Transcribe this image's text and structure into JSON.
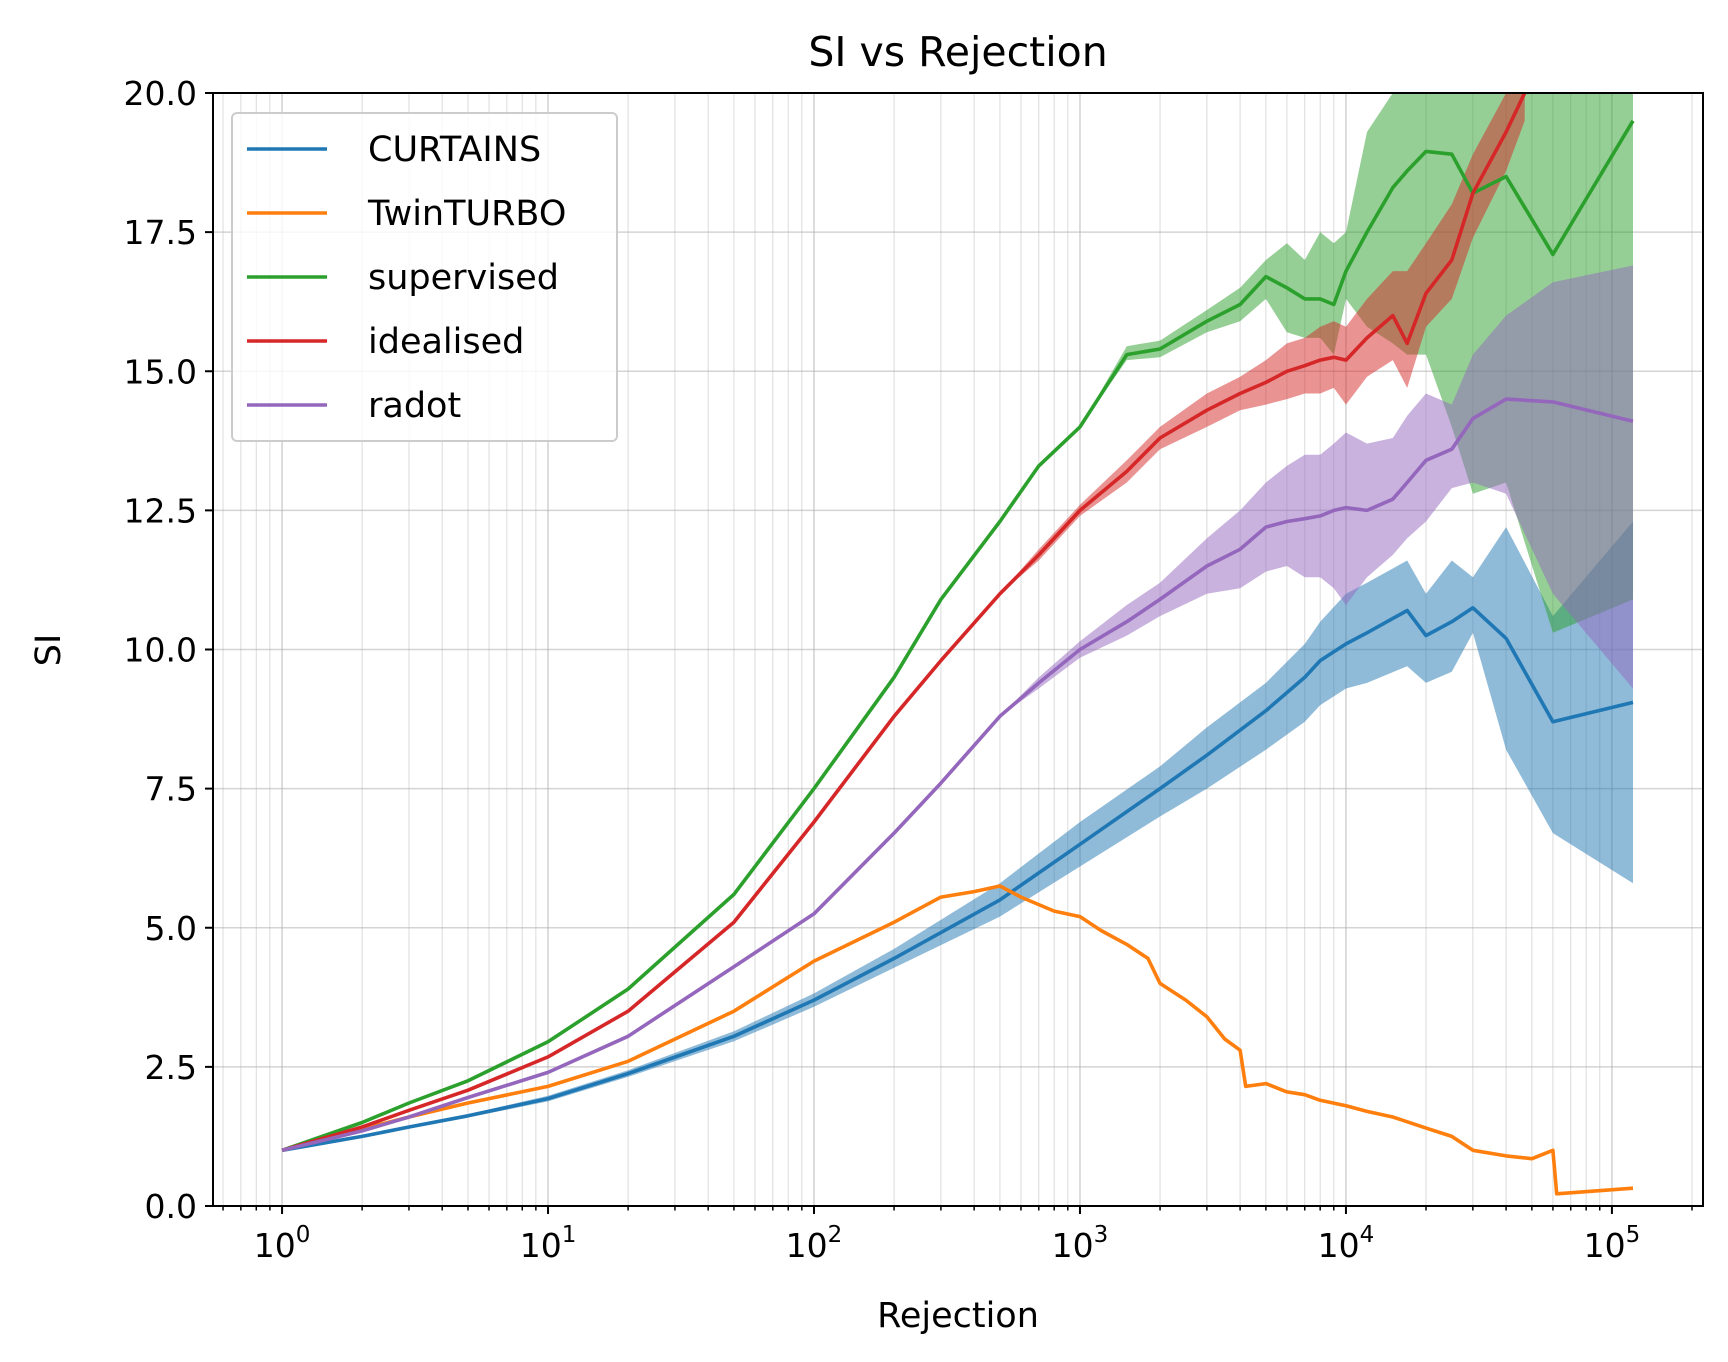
{
  "chart_data": {
    "type": "line",
    "title": "SI vs Rejection",
    "xlabel": "Rejection",
    "ylabel": "SI",
    "xscale": "log",
    "xlim": [
      0.55,
      220000
    ],
    "ylim": [
      0,
      20
    ],
    "x_ticks": [
      1,
      10,
      100,
      1000,
      10000,
      100000
    ],
    "x_tick_labels": [
      {
        "base": "10",
        "exp": "0"
      },
      {
        "base": "10",
        "exp": "1"
      },
      {
        "base": "10",
        "exp": "2"
      },
      {
        "base": "10",
        "exp": "3"
      },
      {
        "base": "10",
        "exp": "4"
      },
      {
        "base": "10",
        "exp": "5"
      }
    ],
    "y_ticks": [
      0.0,
      2.5,
      5.0,
      7.5,
      10.0,
      12.5,
      15.0,
      17.5,
      20.0
    ],
    "y_tick_labels": [
      "0.0",
      "2.5",
      "5.0",
      "7.5",
      "10.0",
      "12.5",
      "15.0",
      "17.5",
      "20.0"
    ],
    "grid": true,
    "legend_position": "top-left",
    "series": [
      {
        "name": "CURTAINS",
        "color": "#1f77b4",
        "band_color": "#1f77b4",
        "x": [
          1,
          2,
          3,
          5,
          10,
          20,
          50,
          100,
          200,
          500,
          1000,
          2000,
          3000,
          5000,
          7000,
          8000,
          10000,
          12000,
          17000,
          20000,
          25000,
          30000,
          40000,
          60000,
          120000
        ],
        "y": [
          1.0,
          1.25,
          1.42,
          1.62,
          1.93,
          2.38,
          3.05,
          3.7,
          4.45,
          5.5,
          6.5,
          7.5,
          8.1,
          8.9,
          9.5,
          9.8,
          10.1,
          10.3,
          10.7,
          10.25,
          10.5,
          10.75,
          10.2,
          8.7,
          9.05
        ],
        "low": [
          1.0,
          1.23,
          1.4,
          1.59,
          1.88,
          2.32,
          2.96,
          3.58,
          4.28,
          5.2,
          6.1,
          7.0,
          7.5,
          8.2,
          8.7,
          9.0,
          9.3,
          9.4,
          9.7,
          9.4,
          9.6,
          10.3,
          8.2,
          6.7,
          5.8
        ],
        "high": [
          1.0,
          1.27,
          1.44,
          1.65,
          1.98,
          2.44,
          3.14,
          3.82,
          4.62,
          5.8,
          6.9,
          7.9,
          8.6,
          9.4,
          10.1,
          10.5,
          11.0,
          11.2,
          11.6,
          11.0,
          11.6,
          11.3,
          12.2,
          10.6,
          12.3
        ]
      },
      {
        "name": "TwinTURBO",
        "color": "#ff7f0e",
        "x": [
          1,
          2,
          3,
          5,
          10,
          20,
          50,
          100,
          200,
          300,
          400,
          500,
          600,
          800,
          1000,
          1200,
          1500,
          1800,
          2000,
          2500,
          3000,
          3500,
          4000,
          4200,
          5000,
          6000,
          7000,
          8000,
          10000,
          12000,
          15000,
          20000,
          25000,
          30000,
          40000,
          50000,
          60000,
          62000,
          120000
        ],
        "y": [
          1.0,
          1.38,
          1.6,
          1.85,
          2.15,
          2.6,
          3.5,
          4.4,
          5.1,
          5.55,
          5.65,
          5.75,
          5.55,
          5.3,
          5.2,
          4.95,
          4.7,
          4.45,
          4.0,
          3.7,
          3.4,
          3.0,
          2.8,
          2.15,
          2.2,
          2.05,
          2.0,
          1.9,
          1.8,
          1.7,
          1.6,
          1.4,
          1.25,
          1.0,
          0.9,
          0.85,
          1.0,
          0.22,
          0.32
        ]
      },
      {
        "name": "supervised",
        "color": "#2ca02c",
        "band_color": "#2ca02c",
        "x": [
          1,
          2,
          3,
          5,
          10,
          20,
          50,
          100,
          200,
          300,
          500,
          700,
          1000,
          1500,
          2000,
          3000,
          4000,
          5000,
          6000,
          7000,
          8000,
          9000,
          10000,
          12000,
          15000,
          17000,
          20000,
          25000,
          30000,
          40000,
          60000,
          120000
        ],
        "y": [
          1.0,
          1.5,
          1.85,
          2.25,
          2.95,
          3.9,
          5.6,
          7.5,
          9.5,
          10.9,
          12.3,
          13.3,
          14.0,
          15.3,
          15.4,
          15.9,
          16.2,
          16.7,
          16.5,
          16.3,
          16.3,
          16.2,
          16.8,
          17.5,
          18.3,
          18.6,
          18.95,
          18.9,
          18.2,
          18.5,
          17.1,
          19.5
        ],
        "low": [
          1.0,
          1.5,
          1.85,
          2.25,
          2.95,
          3.9,
          5.6,
          7.5,
          9.5,
          10.9,
          12.3,
          13.3,
          14.0,
          15.2,
          15.25,
          15.7,
          15.9,
          16.3,
          15.7,
          15.6,
          15.6,
          15.3,
          16.3,
          15.8,
          15.5,
          15.3,
          15.3,
          14.0,
          12.8,
          13.0,
          10.3,
          10.9
        ],
        "high": [
          1.0,
          1.5,
          1.85,
          2.25,
          2.95,
          3.9,
          5.6,
          7.5,
          9.5,
          10.9,
          12.3,
          13.3,
          14.0,
          15.45,
          15.55,
          16.1,
          16.5,
          17.0,
          17.3,
          17.0,
          17.5,
          17.3,
          17.5,
          19.3,
          20.0,
          20.0,
          20.0,
          20.0,
          20.0,
          20.0,
          20.0,
          20.0
        ]
      },
      {
        "name": "idealised",
        "color": "#d62728",
        "band_color": "#d62728",
        "x": [
          1,
          2,
          3,
          5,
          10,
          20,
          50,
          100,
          200,
          300,
          500,
          700,
          1000,
          1500,
          2000,
          3000,
          4000,
          5000,
          6000,
          7000,
          8000,
          9000,
          10000,
          12000,
          15000,
          17000,
          20000,
          25000,
          30000,
          40000,
          47000
        ],
        "y": [
          1.0,
          1.42,
          1.72,
          2.08,
          2.68,
          3.5,
          5.1,
          6.9,
          8.8,
          9.8,
          11.0,
          11.7,
          12.5,
          13.2,
          13.8,
          14.3,
          14.6,
          14.8,
          15.0,
          15.1,
          15.2,
          15.25,
          15.2,
          15.6,
          16.0,
          15.5,
          16.4,
          17.0,
          18.2,
          19.3,
          20.0
        ],
        "low": [
          1.0,
          1.42,
          1.72,
          2.08,
          2.68,
          3.5,
          5.1,
          6.9,
          8.8,
          9.8,
          11.0,
          11.6,
          12.4,
          13.0,
          13.6,
          14.0,
          14.3,
          14.4,
          14.5,
          14.6,
          14.6,
          14.7,
          14.4,
          14.9,
          15.2,
          14.7,
          15.8,
          16.3,
          17.4,
          18.6,
          19.5
        ],
        "high": [
          1.0,
          1.42,
          1.72,
          2.08,
          2.68,
          3.5,
          5.1,
          6.9,
          8.8,
          9.8,
          11.0,
          11.8,
          12.6,
          13.4,
          14.0,
          14.6,
          14.9,
          15.2,
          15.5,
          15.6,
          15.8,
          15.9,
          15.8,
          16.3,
          16.8,
          16.8,
          17.3,
          18.0,
          18.9,
          20.0,
          20.0
        ]
      },
      {
        "name": "radot",
        "color": "#9467bd",
        "band_color": "#9467bd",
        "x": [
          1,
          2,
          3,
          5,
          10,
          20,
          50,
          100,
          200,
          300,
          500,
          700,
          1000,
          1500,
          2000,
          3000,
          4000,
          5000,
          6000,
          7000,
          8000,
          9000,
          10000,
          12000,
          15000,
          17000,
          20000,
          25000,
          30000,
          40000,
          60000,
          120000
        ],
        "y": [
          1.0,
          1.35,
          1.6,
          1.95,
          2.4,
          3.05,
          4.3,
          5.25,
          6.7,
          7.6,
          8.8,
          9.4,
          10.0,
          10.5,
          10.9,
          11.5,
          11.8,
          12.2,
          12.3,
          12.35,
          12.4,
          12.5,
          12.55,
          12.5,
          12.7,
          13.0,
          13.4,
          13.6,
          14.15,
          14.5,
          14.45,
          14.1
        ],
        "low": [
          1.0,
          1.35,
          1.6,
          1.95,
          2.4,
          3.05,
          4.3,
          5.25,
          6.7,
          7.6,
          8.8,
          9.3,
          9.85,
          10.25,
          10.6,
          11.0,
          11.1,
          11.4,
          11.5,
          11.3,
          11.3,
          11.1,
          10.8,
          11.3,
          11.7,
          12.0,
          12.3,
          12.9,
          13.0,
          12.8,
          11.0,
          9.3
        ],
        "high": [
          1.0,
          1.35,
          1.6,
          1.95,
          2.4,
          3.05,
          4.3,
          5.25,
          6.7,
          7.6,
          8.8,
          9.5,
          10.15,
          10.8,
          11.2,
          12.0,
          12.5,
          13.0,
          13.3,
          13.5,
          13.5,
          13.7,
          13.9,
          13.7,
          13.8,
          14.2,
          14.6,
          14.4,
          15.3,
          16.0,
          16.6,
          16.9
        ]
      }
    ]
  }
}
